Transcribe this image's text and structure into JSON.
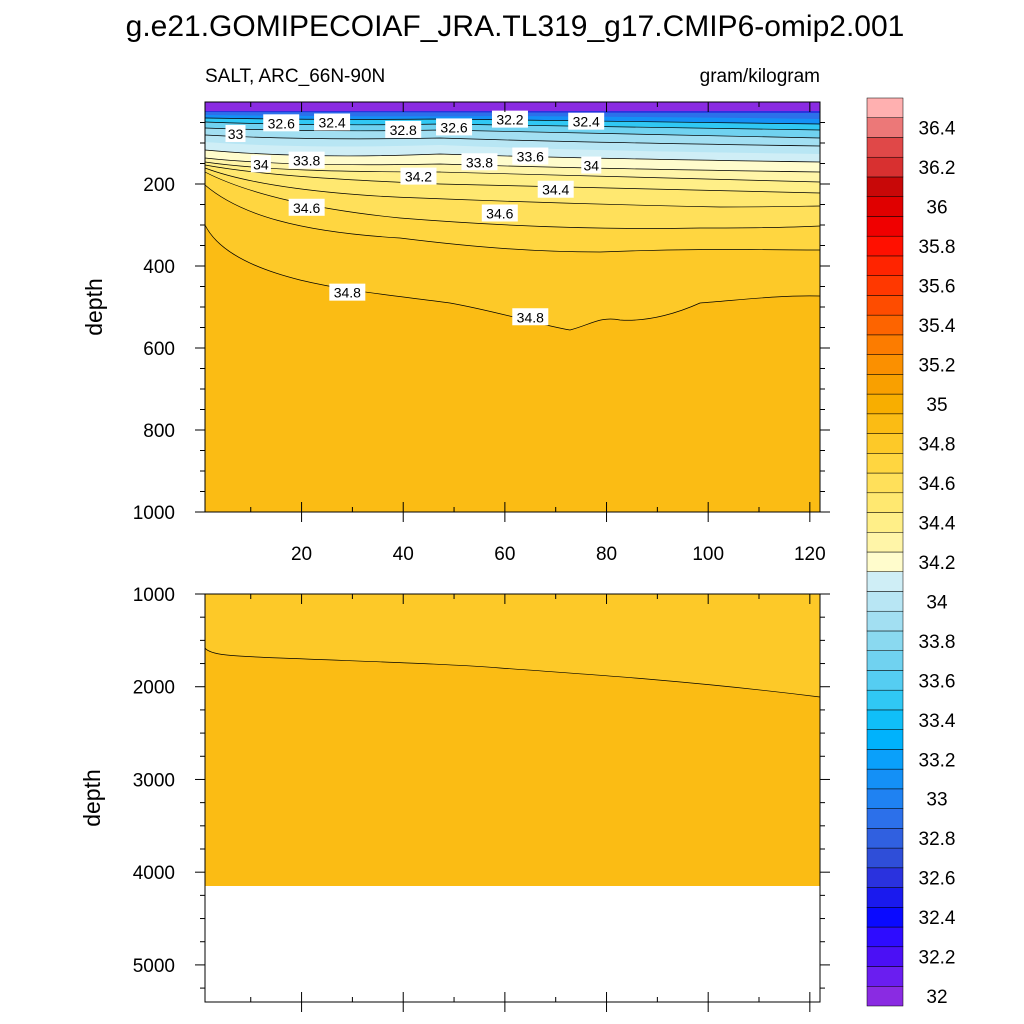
{
  "title": "g.e21.GOMIPECOIAF_JRA.TL319_g17.CMIP6-omip2.001",
  "chart_data": {
    "type": "contour",
    "variable_label": "SALT, ARC_66N-90N",
    "units_label": "gram/kilogram",
    "x_ticks": [
      20,
      40,
      60,
      80,
      100,
      120
    ],
    "xlim": [
      1,
      122
    ],
    "upper_panel": {
      "ylabel": "depth",
      "ylim": [
        1000,
        0
      ],
      "y_ticks": [
        200,
        400,
        600,
        800,
        1000
      ],
      "contour_labels": [
        {
          "text": "33",
          "x": 7,
          "y": 78
        },
        {
          "text": "32.6",
          "x": 16,
          "y": 52
        },
        {
          "text": "32.4",
          "x": 26,
          "y": 50
        },
        {
          "text": "32.8",
          "x": 40,
          "y": 68
        },
        {
          "text": "32.6",
          "x": 50,
          "y": 62
        },
        {
          "text": "32.2",
          "x": 61,
          "y": 43
        },
        {
          "text": "32.4",
          "x": 76,
          "y": 48
        },
        {
          "text": "34",
          "x": 12,
          "y": 152
        },
        {
          "text": "33.8",
          "x": 21,
          "y": 143
        },
        {
          "text": "33.8",
          "x": 55,
          "y": 147
        },
        {
          "text": "33.6",
          "x": 65,
          "y": 133
        },
        {
          "text": "34",
          "x": 77,
          "y": 155
        },
        {
          "text": "34.2",
          "x": 43,
          "y": 182
        },
        {
          "text": "34.4",
          "x": 70,
          "y": 214
        },
        {
          "text": "34.6",
          "x": 21,
          "y": 258
        },
        {
          "text": "34.6",
          "x": 59,
          "y": 272
        },
        {
          "text": "34.8",
          "x": 29,
          "y": 465
        },
        {
          "text": "34.8",
          "x": 65,
          "y": 525
        }
      ]
    },
    "lower_panel": {
      "ylabel": "depth",
      "ylim": [
        1000,
        5400
      ],
      "y_ticks": [
        1000,
        2000,
        3000,
        4000,
        5000
      ],
      "ocean_floor_depth": 4120,
      "contour_34_9_depth": [
        1600,
        2100
      ]
    },
    "colorbar": {
      "levels": [
        32,
        32.1,
        32.2,
        32.3,
        32.4,
        32.5,
        32.6,
        32.7,
        32.8,
        32.9,
        33,
        33.1,
        33.2,
        33.3,
        33.4,
        33.5,
        33.6,
        33.7,
        33.8,
        33.9,
        34,
        34.1,
        34.2,
        34.3,
        34.4,
        34.5,
        34.6,
        34.7,
        34.8,
        34.9,
        35,
        35.1,
        35.2,
        35.3,
        35.4,
        35.5,
        35.6,
        35.7,
        35.8,
        35.9,
        36,
        36.1,
        36.2,
        36.3,
        36.4,
        36.5
      ],
      "labels": [
        "32",
        "32.2",
        "32.4",
        "32.6",
        "32.8",
        "33",
        "33.2",
        "33.4",
        "33.6",
        "33.8",
        "34",
        "34.2",
        "34.4",
        "34.6",
        "34.8",
        "35",
        "35.2",
        "35.4",
        "35.6",
        "35.8",
        "36",
        "36.2",
        "36.4"
      ],
      "colors": [
        "#8a2be2",
        "#6a1ef0",
        "#4b10f5",
        "#2e0cff",
        "#0a0aff",
        "#1a1aee",
        "#2a32de",
        "#2f4ed8",
        "#3060e0",
        "#2c70ea",
        "#1f82f2",
        "#1490f6",
        "#0aa0fa",
        "#00b2fc",
        "#10bff8",
        "#30c8f4",
        "#55cdf2",
        "#70d2f0",
        "#8ad9f0",
        "#a2dff2",
        "#b8e6f4",
        "#cfeef6",
        "#fffccc",
        "#fff5a8",
        "#ffef88",
        "#ffe870",
        "#ffe05a",
        "#ffd640",
        "#fdc928",
        "#fbbc14",
        "#f8ae00",
        "#f9a000",
        "#fb9000",
        "#fc7c00",
        "#fd6400",
        "#fe4c00",
        "#ff3800",
        "#ff2400",
        "#ff1000",
        "#f00000",
        "#e00000",
        "#c80808",
        "#d83030",
        "#e04848",
        "#ec7878",
        "#ffb0b0"
      ]
    }
  }
}
